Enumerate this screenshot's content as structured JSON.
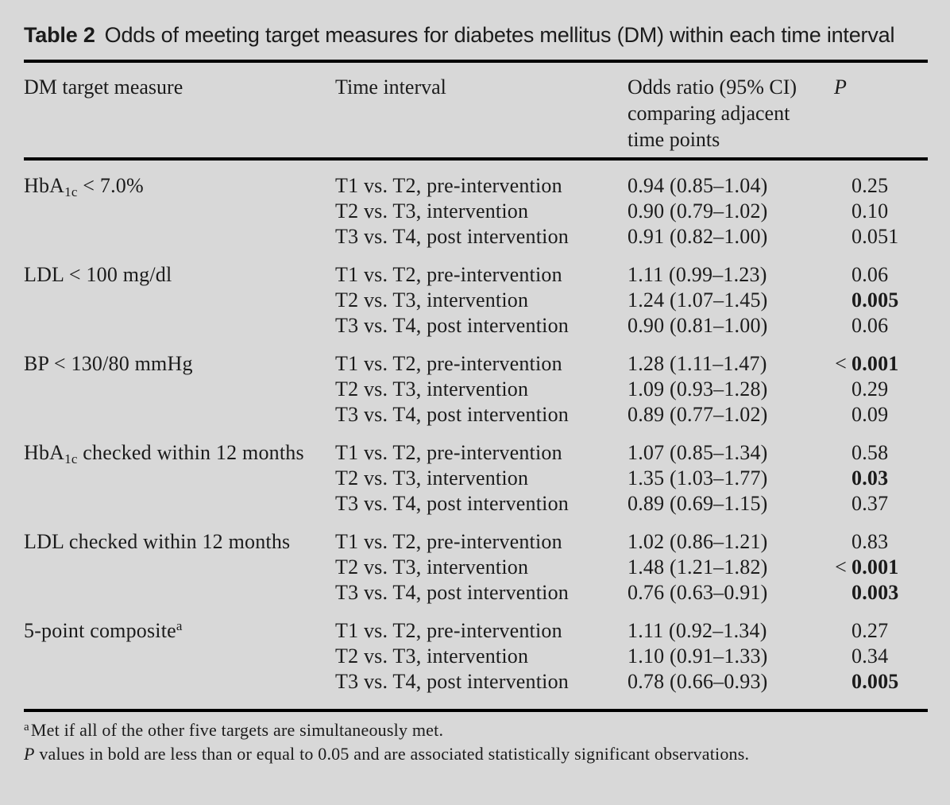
{
  "colors": {
    "background": "#d8d8d8",
    "text": "#1b1b1b",
    "rule": "#000000"
  },
  "title": {
    "label": "Table 2",
    "text": "Odds of meeting target measures for diabetes mellitus (DM) within each time interval"
  },
  "header": {
    "measure": "DM target measure",
    "interval": "Time interval",
    "odds": "Odds ratio (95% CI) comparing adjacent time points",
    "p": "P"
  },
  "groups": [
    {
      "measure": {
        "pre": "HbA",
        "sub": "1c",
        "post": " < 7.0%",
        "sup": ""
      },
      "rows": [
        {
          "interval": "T1 vs. T2, pre-intervention",
          "odds": "0.94 (0.85–1.04)",
          "p_prefix": "",
          "p": "0.25",
          "p_bold": false
        },
        {
          "interval": "T2 vs. T3, intervention",
          "odds": "0.90 (0.79–1.02)",
          "p_prefix": "",
          "p": "0.10",
          "p_bold": false
        },
        {
          "interval": "T3 vs. T4, post intervention",
          "odds": "0.91 (0.82–1.00)",
          "p_prefix": "",
          "p": "0.051",
          "p_bold": false
        }
      ]
    },
    {
      "measure": {
        "pre": "LDL < 100 mg/dl",
        "sub": "",
        "post": "",
        "sup": ""
      },
      "rows": [
        {
          "interval": "T1 vs. T2, pre-intervention",
          "odds": "1.11 (0.99–1.23)",
          "p_prefix": "",
          "p": "0.06",
          "p_bold": false
        },
        {
          "interval": "T2 vs. T3, intervention",
          "odds": "1.24 (1.07–1.45)",
          "p_prefix": "",
          "p": "0.005",
          "p_bold": true
        },
        {
          "interval": "T3 vs. T4, post intervention",
          "odds": "0.90 (0.81–1.00)",
          "p_prefix": "",
          "p": "0.06",
          "p_bold": false
        }
      ]
    },
    {
      "measure": {
        "pre": "BP < 130/80 mmHg",
        "sub": "",
        "post": "",
        "sup": ""
      },
      "rows": [
        {
          "interval": "T1 vs. T2, pre-intervention",
          "odds": "1.28 (1.11–1.47)",
          "p_prefix": "<",
          "p": "0.001",
          "p_bold": true
        },
        {
          "interval": "T2 vs. T3, intervention",
          "odds": "1.09 (0.93–1.28)",
          "p_prefix": "",
          "p": "0.29",
          "p_bold": false
        },
        {
          "interval": "T3 vs. T4, post intervention",
          "odds": "0.89 (0.77–1.02)",
          "p_prefix": "",
          "p": "0.09",
          "p_bold": false
        }
      ]
    },
    {
      "measure": {
        "pre": "HbA",
        "sub": "1c",
        "post": " checked within 12 months",
        "sup": ""
      },
      "rows": [
        {
          "interval": "T1 vs. T2, pre-intervention",
          "odds": "1.07 (0.85–1.34)",
          "p_prefix": "",
          "p": "0.58",
          "p_bold": false
        },
        {
          "interval": "T2 vs. T3, intervention",
          "odds": "1.35 (1.03–1.77)",
          "p_prefix": "",
          "p": "0.03",
          "p_bold": true
        },
        {
          "interval": "T3 vs. T4, post intervention",
          "odds": "0.89 (0.69–1.15)",
          "p_prefix": "",
          "p": "0.37",
          "p_bold": false
        }
      ]
    },
    {
      "measure": {
        "pre": "LDL checked within 12 months",
        "sub": "",
        "post": "",
        "sup": ""
      },
      "rows": [
        {
          "interval": "T1 vs. T2, pre-intervention",
          "odds": "1.02 (0.86–1.21)",
          "p_prefix": "",
          "p": "0.83",
          "p_bold": false
        },
        {
          "interval": "T2 vs. T3, intervention",
          "odds": "1.48 (1.21–1.82)",
          "p_prefix": "<",
          "p": "0.001",
          "p_bold": true
        },
        {
          "interval": "T3 vs. T4, post intervention",
          "odds": "0.76 (0.63–0.91)",
          "p_prefix": "",
          "p": "0.003",
          "p_bold": true
        }
      ]
    },
    {
      "measure": {
        "pre": "5-point composite",
        "sub": "",
        "post": "",
        "sup": "a"
      },
      "rows": [
        {
          "interval": "T1 vs. T2, pre-intervention",
          "odds": "1.11 (0.92–1.34)",
          "p_prefix": "",
          "p": "0.27",
          "p_bold": false
        },
        {
          "interval": "T2 vs. T3, intervention",
          "odds": "1.10 (0.91–1.33)",
          "p_prefix": "",
          "p": "0.34",
          "p_bold": false
        },
        {
          "interval": "T3 vs. T4, post intervention",
          "odds": "0.78 (0.66–0.93)",
          "p_prefix": "",
          "p": "0.005",
          "p_bold": true
        }
      ]
    }
  ],
  "footnotes": {
    "a_marker": "a",
    "a_text": "Met if all of the other five targets are simultaneously met.",
    "p_lead": "P",
    "p_text": " values in bold are less than or equal to 0.05 and are associated statistically significant observations."
  }
}
